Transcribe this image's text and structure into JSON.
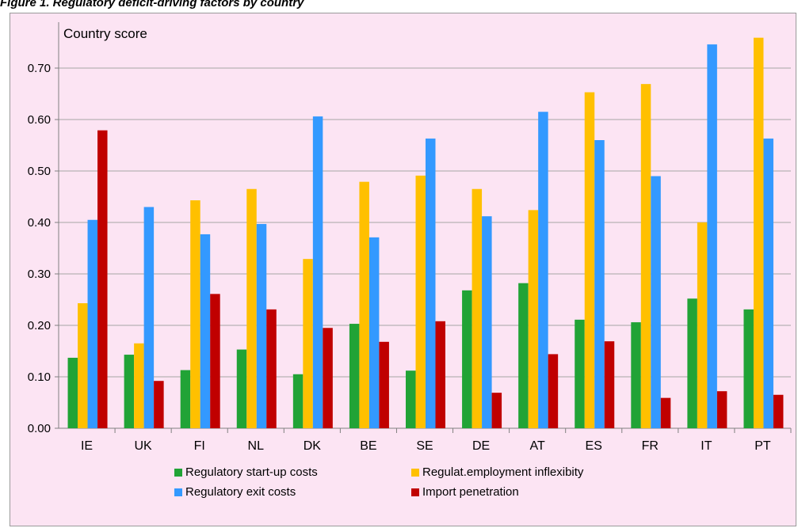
{
  "caption": "Figure 1.  Regulatory deficit-driving factors by country",
  "chart_data": {
    "type": "bar",
    "title": "",
    "xlabel": "",
    "ylabel": "Country score",
    "ylim": [
      0,
      0.8
    ],
    "yticks": [
      "0.00",
      "0.10",
      "0.20",
      "0.30",
      "0.40",
      "0.50",
      "0.60",
      "0.70"
    ],
    "grid": true,
    "legend_position": "bottom",
    "categories": [
      "IE",
      "UK",
      "FI",
      "NL",
      "DK",
      "BE",
      "SE",
      "DE",
      "AT",
      "ES",
      "FR",
      "IT",
      "PT"
    ],
    "series": [
      {
        "name": "Regulatory start-up costs",
        "color": "#21a336",
        "values": [
          0.137,
          0.143,
          0.113,
          0.153,
          0.105,
          0.203,
          0.112,
          0.268,
          0.282,
          0.211,
          0.206,
          0.252,
          0.231
        ]
      },
      {
        "name": "Regulat.employment  inflexibity",
        "color": "#ffc000",
        "values": [
          0.243,
          0.165,
          0.443,
          0.465,
          0.329,
          0.479,
          0.491,
          0.465,
          0.424,
          0.653,
          0.669,
          0.4,
          0.759
        ]
      },
      {
        "name": "Regulatory exit costs",
        "color": "#3399ff",
        "values": [
          0.405,
          0.43,
          0.377,
          0.397,
          0.606,
          0.371,
          0.563,
          0.412,
          0.615,
          0.56,
          0.49,
          0.746,
          0.563
        ]
      },
      {
        "name": "Import penetration",
        "color": "#c00000",
        "values": [
          0.579,
          0.092,
          0.261,
          0.231,
          0.195,
          0.168,
          0.208,
          0.069,
          0.144,
          0.169,
          0.059,
          0.072,
          0.065
        ]
      }
    ]
  }
}
